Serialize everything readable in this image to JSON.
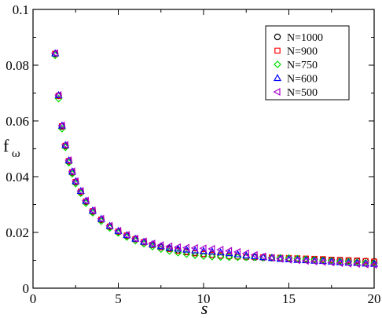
{
  "chart_data": {
    "type": "scatter",
    "title": "",
    "xlabel": "s",
    "ylabel": {
      "main": "f",
      "subscript": "ω"
    },
    "xlim": [
      0,
      20
    ],
    "ylim": [
      0,
      0.1
    ],
    "x_ticks": [
      0,
      5,
      10,
      15,
      20
    ],
    "x_tick_labels": [
      "0",
      "5",
      "10",
      "15",
      "20"
    ],
    "y_ticks": [
      0,
      0.02,
      0.04,
      0.06,
      0.08,
      0.1
    ],
    "y_tick_labels": [
      "0",
      "0.02",
      "0.04",
      "0.06",
      "0.08",
      "0.1"
    ],
    "grid": false,
    "legend_position": "top-right",
    "series": [
      {
        "name": "N=1000",
        "marker": "circle",
        "color": "#000000",
        "x": [
          1.3,
          1.5,
          1.7,
          1.9,
          2.1,
          2.3,
          2.5,
          2.8,
          3.1,
          3.5,
          4.0,
          4.5,
          5.0,
          5.5,
          6.0,
          6.5,
          7.0,
          7.5,
          8.0,
          8.5,
          9.0,
          9.5,
          10.0,
          10.5,
          11.0,
          11.5,
          12.0,
          12.5,
          13.0,
          13.5,
          14.0,
          14.5,
          15.0,
          15.5,
          16.0,
          16.5,
          17.0,
          17.5,
          18.0,
          18.5,
          19.0,
          19.5,
          20.0
        ],
        "y": [
          0.084,
          0.069,
          0.058,
          0.051,
          0.0455,
          0.0415,
          0.038,
          0.0345,
          0.031,
          0.0275,
          0.0245,
          0.022,
          0.0202,
          0.0188,
          0.0176,
          0.0165,
          0.0156,
          0.0148,
          0.0142,
          0.0136,
          0.0131,
          0.0127,
          0.0123,
          0.012,
          0.0117,
          0.0115,
          0.0113,
          0.0111,
          0.011,
          0.0109,
          0.0108,
          0.0107,
          0.0106,
          0.0105,
          0.0104,
          0.0103,
          0.0102,
          0.0101,
          0.01,
          0.0099,
          0.0098,
          0.0097,
          0.0096
        ]
      },
      {
        "name": "N=900",
        "marker": "square",
        "color": "#ff0000",
        "x": [
          1.3,
          1.5,
          1.7,
          1.9,
          2.1,
          2.3,
          2.5,
          2.8,
          3.1,
          3.5,
          4.0,
          4.5,
          5.0,
          5.5,
          6.0,
          6.5,
          7.0,
          7.5,
          8.0,
          8.5,
          9.0,
          9.5,
          10.0,
          10.5,
          11.0,
          11.5,
          12.0,
          12.5,
          13.0,
          13.5,
          14.0,
          14.5,
          15.0,
          15.5,
          16.0,
          16.5,
          17.0,
          17.5,
          18.0,
          18.5,
          19.0,
          19.5,
          20.0
        ],
        "y": [
          0.0841,
          0.069,
          0.0581,
          0.0511,
          0.0456,
          0.0416,
          0.0381,
          0.0346,
          0.0311,
          0.0276,
          0.0246,
          0.0221,
          0.0203,
          0.0189,
          0.0176,
          0.0165,
          0.0155,
          0.0147,
          0.014,
          0.0134,
          0.0129,
          0.0125,
          0.0122,
          0.0119,
          0.0117,
          0.0115,
          0.0114,
          0.0113,
          0.0112,
          0.0111,
          0.011,
          0.0109,
          0.0108,
          0.0107,
          0.0106,
          0.0105,
          0.0104,
          0.0102,
          0.0101,
          0.01,
          0.0099,
          0.0097,
          0.0095
        ]
      },
      {
        "name": "N=750",
        "marker": "diamond",
        "color": "#00dd00",
        "x": [
          1.3,
          1.5,
          1.7,
          1.9,
          2.1,
          2.3,
          2.5,
          2.8,
          3.1,
          3.5,
          4.0,
          4.5,
          5.0,
          5.5,
          6.0,
          6.5,
          7.0,
          7.5,
          8.0,
          8.5,
          9.0,
          9.5,
          10.0,
          10.5,
          11.0,
          11.5,
          12.0,
          12.5,
          13.0,
          13.5,
          14.0,
          14.5,
          15.0,
          15.5,
          16.0,
          16.5,
          17.0,
          17.5,
          18.0,
          18.5,
          19.0,
          19.5,
          20.0
        ],
        "y": [
          0.0835,
          0.068,
          0.0572,
          0.0505,
          0.045,
          0.041,
          0.0375,
          0.034,
          0.0305,
          0.027,
          0.024,
          0.0216,
          0.0198,
          0.0183,
          0.017,
          0.0159,
          0.0149,
          0.014,
          0.0133,
          0.0127,
          0.0122,
          0.0118,
          0.0115,
          0.0113,
          0.0112,
          0.0111,
          0.0111,
          0.0111,
          0.0111,
          0.011,
          0.011,
          0.0109,
          0.0108,
          0.0106,
          0.0104,
          0.0102,
          0.01,
          0.0098,
          0.0096,
          0.0095,
          0.0093,
          0.0091,
          0.009
        ]
      },
      {
        "name": "N=600",
        "marker": "triangle-up",
        "color": "#0000ff",
        "x": [
          1.3,
          1.5,
          1.7,
          1.9,
          2.1,
          2.3,
          2.5,
          2.8,
          3.1,
          3.5,
          4.0,
          4.5,
          5.0,
          5.5,
          6.0,
          6.5,
          7.0,
          7.5,
          8.0,
          8.5,
          9.0,
          9.5,
          10.0,
          10.5,
          11.0,
          11.5,
          12.0,
          12.5,
          13.0,
          13.5,
          14.0,
          14.5,
          15.0,
          15.5,
          16.0,
          16.5,
          17.0,
          17.5,
          18.0,
          18.5,
          19.0,
          19.5,
          20.0
        ],
        "y": [
          0.0842,
          0.0692,
          0.0583,
          0.0513,
          0.0458,
          0.0418,
          0.0383,
          0.0348,
          0.0313,
          0.0278,
          0.0248,
          0.0223,
          0.0205,
          0.019,
          0.0177,
          0.0166,
          0.0157,
          0.015,
          0.0145,
          0.0141,
          0.0138,
          0.0135,
          0.0133,
          0.0131,
          0.0128,
          0.0125,
          0.0121,
          0.0117,
          0.0114,
          0.0111,
          0.0108,
          0.0105,
          0.0103,
          0.0101,
          0.01,
          0.0098,
          0.0097,
          0.0095,
          0.0093,
          0.0091,
          0.009,
          0.0088,
          0.0087
        ]
      },
      {
        "name": "N=500",
        "marker": "triangle-left",
        "color": "#aa00cc",
        "x": [
          1.3,
          1.5,
          1.7,
          1.9,
          2.1,
          2.3,
          2.5,
          2.8,
          3.1,
          3.5,
          4.0,
          4.5,
          5.0,
          5.5,
          6.0,
          6.5,
          7.0,
          7.5,
          8.0,
          8.5,
          9.0,
          9.5,
          10.0,
          10.5,
          11.0,
          11.5,
          12.0,
          12.5,
          13.0,
          13.5,
          14.0,
          14.5,
          15.0,
          15.5,
          16.0,
          16.5,
          17.0,
          17.5,
          18.0,
          18.5,
          19.0,
          19.5,
          20.0
        ],
        "y": [
          0.0843,
          0.0693,
          0.0584,
          0.0514,
          0.0459,
          0.0419,
          0.0384,
          0.0349,
          0.0314,
          0.0279,
          0.0249,
          0.0224,
          0.0206,
          0.0191,
          0.0178,
          0.0168,
          0.016,
          0.0154,
          0.015,
          0.0147,
          0.0145,
          0.0144,
          0.0143,
          0.0141,
          0.0138,
          0.0134,
          0.013,
          0.0125,
          0.0119,
          0.0114,
          0.0109,
          0.0105,
          0.0102,
          0.01,
          0.0098,
          0.0096,
          0.0094,
          0.0092,
          0.009,
          0.0088,
          0.0087,
          0.0085,
          0.0084
        ]
      }
    ]
  }
}
